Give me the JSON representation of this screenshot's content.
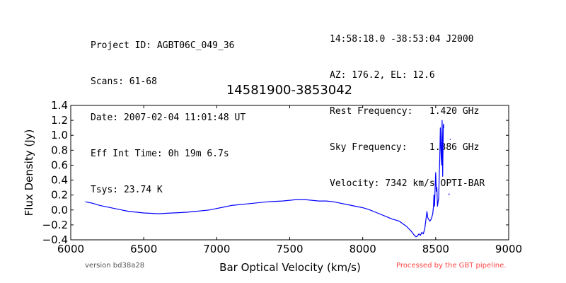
{
  "header": {
    "left_lines": [
      "Project ID: AGBT06C_049_36",
      "Scans: 61-68",
      "Date: 2007-02-04 11:01:48 UT",
      "Eff Int Time: 0h 19m 6.7s",
      "Tsys: 23.74 K"
    ],
    "right_lines": [
      "14:58:18.0 -38:53:04 J2000",
      "AZ: 176.2, EL: 12.6",
      "Rest Frequency:   1.420 GHz",
      "Sky Frequency:    1.386 GHz",
      "Velocity: 7342 km/s OPTI-BAR"
    ]
  },
  "footer": {
    "version": "version bd38a28",
    "processed": "Processed by the GBT pipeline."
  },
  "colors": {
    "line": "#0000ff",
    "processed_text": "#ff4444"
  },
  "chart_data": {
    "type": "line",
    "title": "14581900-3853042",
    "xlabel": "Bar Optical Velocity (km/s)",
    "ylabel": "Flux Density (Jy)",
    "xlim": [
      6000,
      9000
    ],
    "ylim": [
      -0.4,
      1.4
    ],
    "x_ticks": [
      6000,
      6500,
      7000,
      7500,
      8000,
      8500,
      9000
    ],
    "y_ticks": [
      -0.4,
      -0.2,
      0.0,
      0.2,
      0.4,
      0.6,
      0.8,
      1.0,
      1.2,
      1.4
    ],
    "y_tick_labels": [
      "−0.4",
      "−0.2",
      "0.0",
      "0.2",
      "0.4",
      "0.6",
      "0.8",
      "1.0",
      "1.2",
      "1.4"
    ],
    "series": [
      {
        "segments": [
          [
            [
              6100,
              0.11
            ],
            [
              6150,
              0.09
            ],
            [
              6200,
              0.06
            ],
            [
              6250,
              0.04
            ],
            [
              6300,
              0.02
            ],
            [
              6350,
              0.0
            ],
            [
              6400,
              -0.02
            ],
            [
              6450,
              -0.03
            ],
            [
              6500,
              -0.04
            ],
            [
              6550,
              -0.045
            ],
            [
              6600,
              -0.05
            ],
            [
              6650,
              -0.045
            ],
            [
              6700,
              -0.04
            ],
            [
              6750,
              -0.035
            ],
            [
              6800,
              -0.03
            ],
            [
              6850,
              -0.02
            ],
            [
              6900,
              -0.01
            ],
            [
              6950,
              0.0
            ],
            [
              7000,
              0.02
            ],
            [
              7050,
              0.04
            ],
            [
              7100,
              0.06
            ],
            [
              7150,
              0.07
            ],
            [
              7200,
              0.08
            ],
            [
              7250,
              0.09
            ],
            [
              7300,
              0.1
            ],
            [
              7350,
              0.11
            ],
            [
              7400,
              0.115
            ],
            [
              7450,
              0.12
            ],
            [
              7500,
              0.13
            ],
            [
              7550,
              0.14
            ],
            [
              7600,
              0.14
            ],
            [
              7650,
              0.13
            ],
            [
              7700,
              0.12
            ],
            [
              7750,
              0.12
            ],
            [
              7800,
              0.11
            ],
            [
              7850,
              0.09
            ],
            [
              7900,
              0.07
            ],
            [
              7950,
              0.05
            ],
            [
              8000,
              0.03
            ],
            [
              8020,
              0.02
            ],
            [
              8050,
              0.0
            ],
            [
              8100,
              -0.04
            ],
            [
              8150,
              -0.08
            ],
            [
              8200,
              -0.12
            ],
            [
              8250,
              -0.15
            ],
            [
              8300,
              -0.22
            ],
            [
              8330,
              -0.28
            ],
            [
              8350,
              -0.33
            ],
            [
              8365,
              -0.36
            ],
            [
              8375,
              -0.35
            ],
            [
              8385,
              -0.32
            ],
            [
              8395,
              -0.34
            ],
            [
              8405,
              -0.3
            ],
            [
              8415,
              -0.32
            ],
            [
              8425,
              -0.25
            ],
            [
              8435,
              -0.1
            ],
            [
              8440,
              -0.02
            ],
            [
              8445,
              -0.1
            ],
            [
              8450,
              -0.12
            ],
            [
              8460,
              -0.15
            ],
            [
              8470,
              -0.12
            ],
            [
              8480,
              -0.05
            ],
            [
              8485,
              0.05
            ],
            [
              8488,
              0.2
            ],
            [
              8492,
              0.05
            ],
            [
              8496,
              0.3
            ],
            [
              8500,
              0.5
            ],
            [
              8504,
              0.25
            ],
            [
              8508,
              0.3
            ],
            [
              8512,
              0.05
            ],
            [
              8516,
              0.1
            ],
            [
              8520,
              0.15
            ],
            [
              8524,
              0.45
            ],
            [
              8528,
              0.7
            ],
            [
              8532,
              1.1
            ],
            [
              8536,
              0.8
            ],
            [
              8540,
              0.6
            ],
            [
              8544,
              1.2
            ],
            [
              8548,
              0.45
            ],
            [
              8552,
              1.15
            ],
            [
              8556,
              1.1
            ]
          ],
          [
            [
              8590,
              0.2
            ],
            [
              8593,
              0.22
            ]
          ],
          [
            [
              8598,
              0.94
            ],
            [
              8602,
              0.95
            ]
          ]
        ]
      }
    ]
  }
}
